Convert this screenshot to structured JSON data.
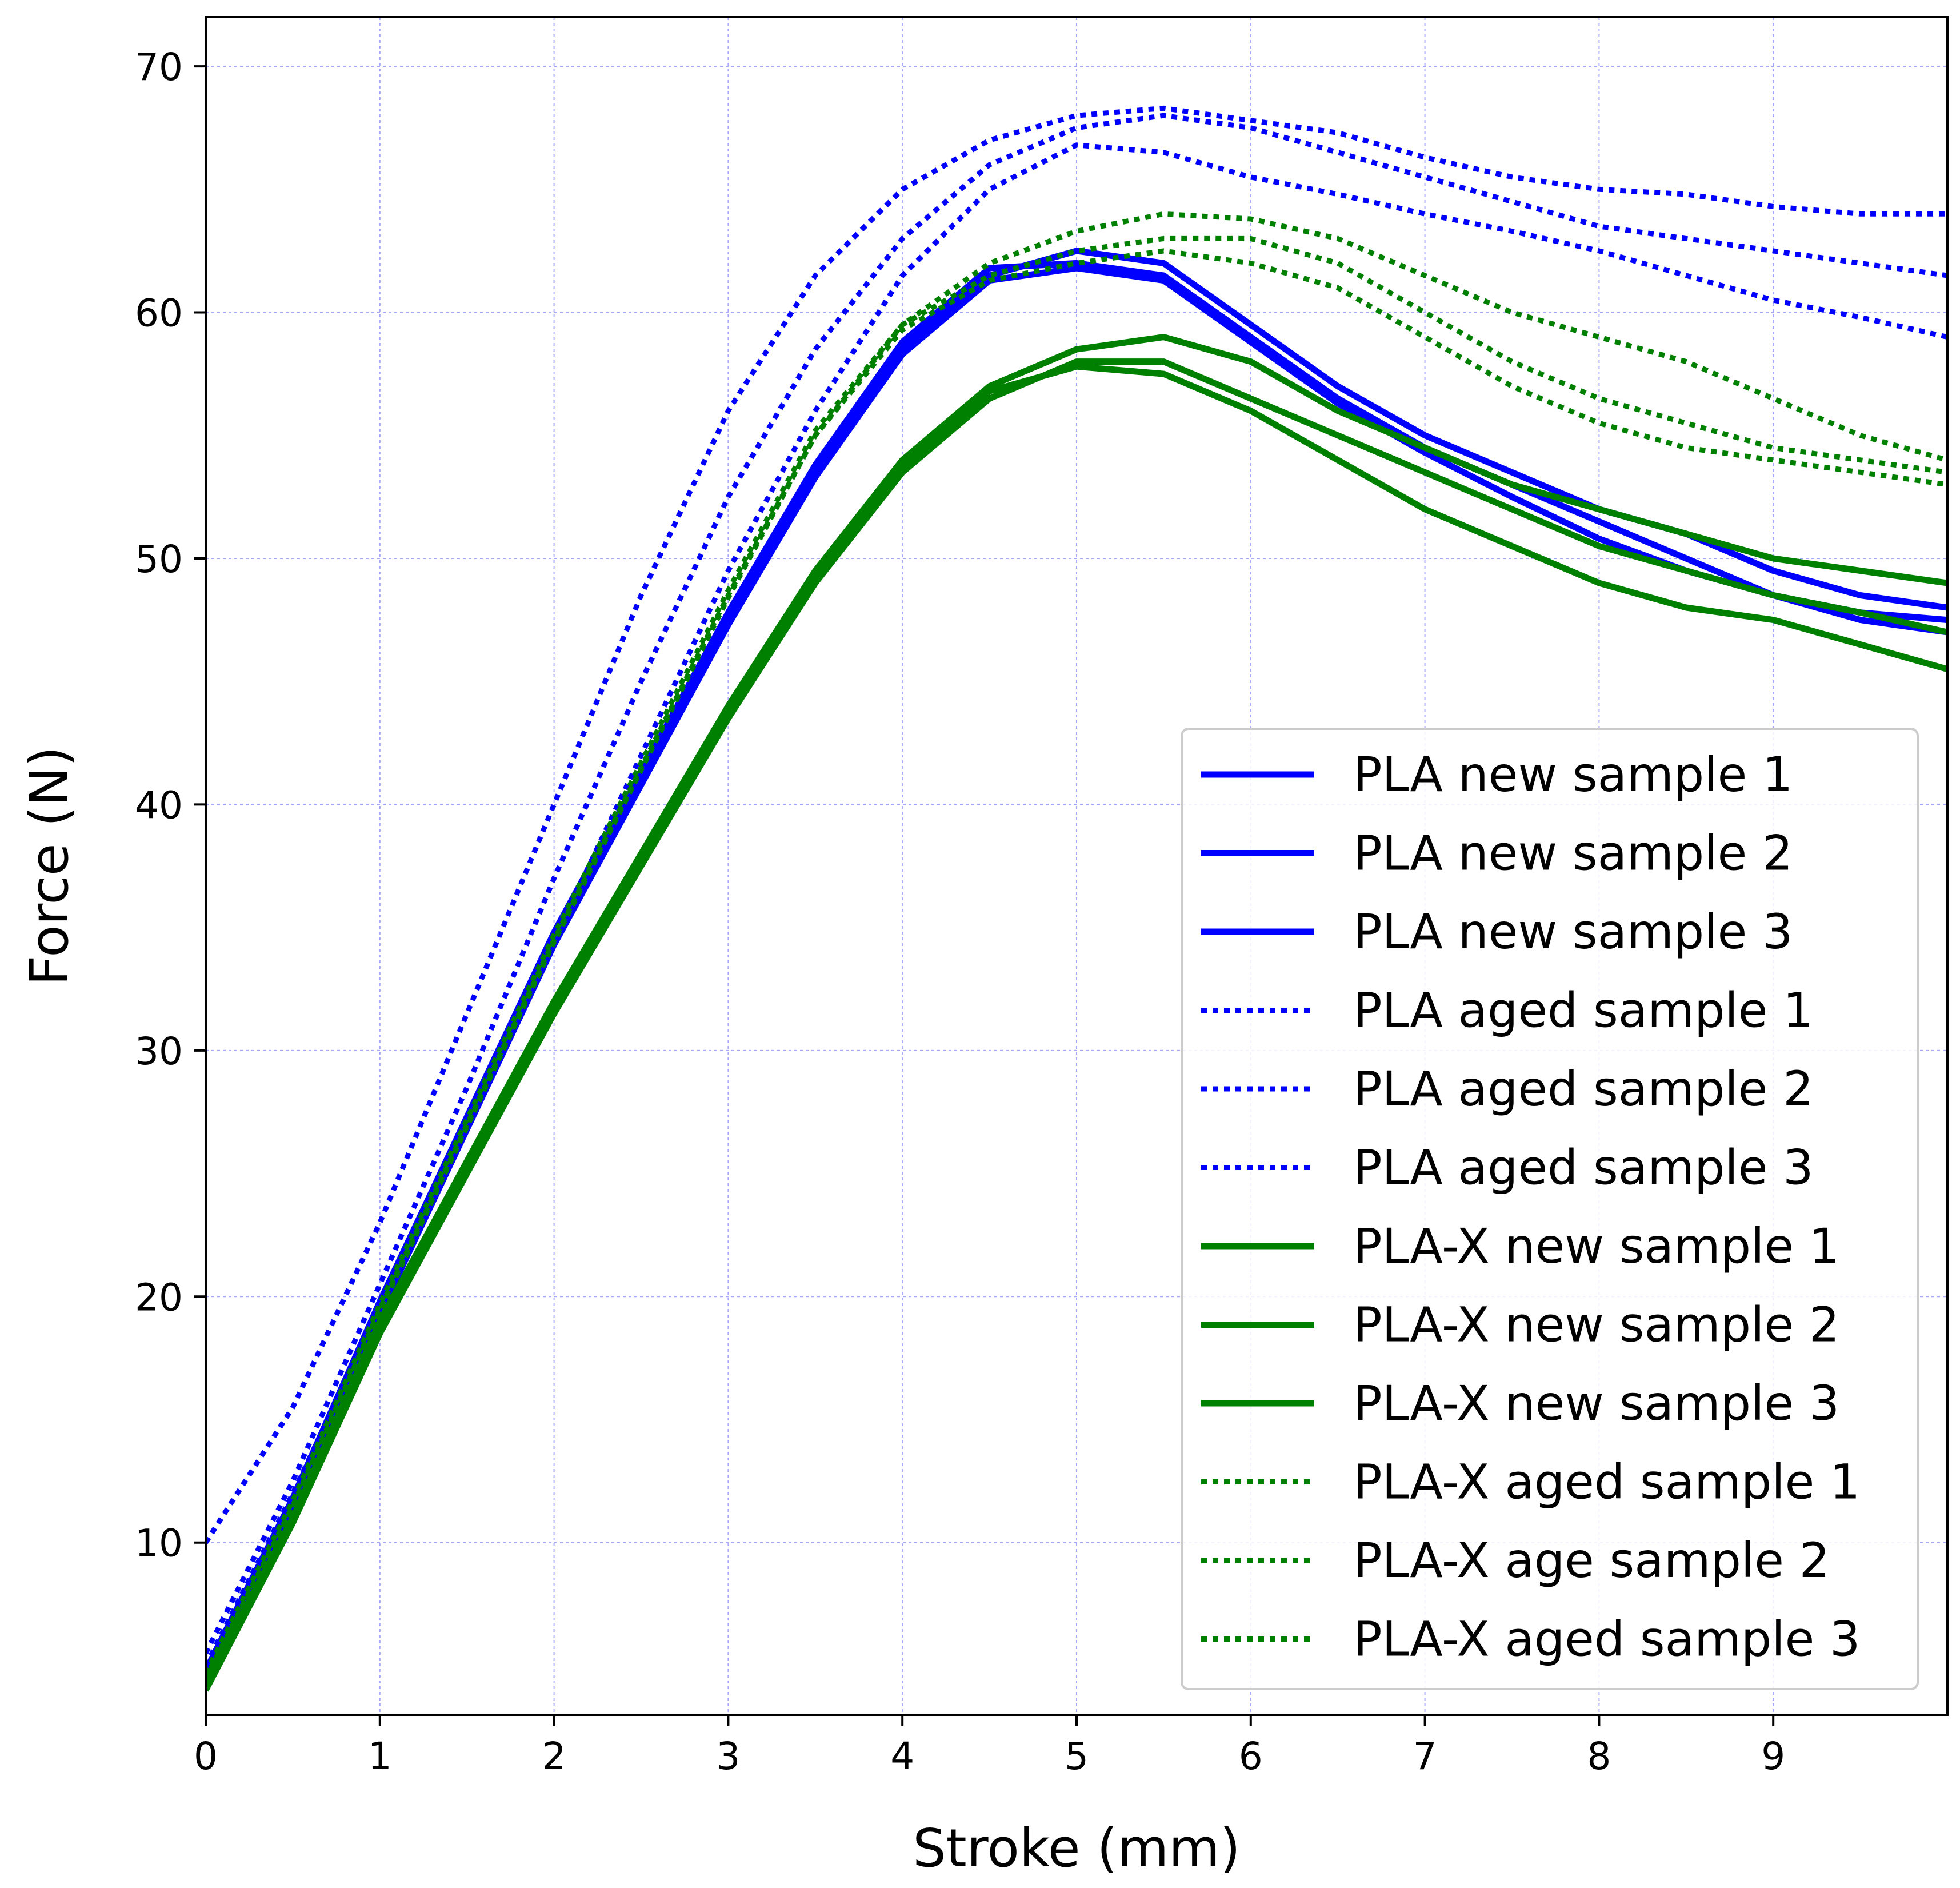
{
  "chart_data": {
    "type": "line",
    "title": "",
    "xlabel": "Stroke (mm)",
    "ylabel": "Force (N)",
    "xlim": [
      0,
      10
    ],
    "ylim": [
      3,
      72
    ],
    "xticks": [
      0,
      1,
      2,
      3,
      4,
      5,
      6,
      7,
      8,
      9
    ],
    "yticks": [
      10,
      20,
      30,
      40,
      50,
      60,
      70
    ],
    "grid": true,
    "grid_color": "#0000ff",
    "legend_position": "lower-right",
    "series": [
      {
        "name": "PLA new sample 1",
        "color": "#0000ff",
        "style": "solid",
        "x": [
          0,
          0.5,
          1,
          1.5,
          2,
          2.5,
          3,
          3.5,
          4,
          4.5,
          5,
          5.5,
          6,
          6.5,
          7,
          7.5,
          8,
          8.5,
          9,
          9.5,
          10
        ],
        "y": [
          4.5,
          11.5,
          19.5,
          27,
          34.5,
          41,
          47.5,
          53.5,
          58.5,
          61.5,
          62.5,
          62,
          59.5,
          57,
          55,
          53.5,
          52,
          51,
          49.5,
          48.5,
          48
        ]
      },
      {
        "name": "PLA new sample 2",
        "color": "#0000ff",
        "style": "solid",
        "x": [
          0,
          0.5,
          1,
          1.5,
          2,
          2.5,
          3,
          3.5,
          4,
          4.5,
          5,
          5.5,
          6,
          6.5,
          7,
          7.5,
          8,
          8.5,
          9,
          9.5,
          10
        ],
        "y": [
          4.8,
          11.8,
          19.8,
          27.3,
          34.8,
          41.3,
          47.8,
          53.8,
          58.8,
          61.8,
          62,
          61.5,
          59,
          56.5,
          54.5,
          53,
          51.5,
          50,
          48.5,
          47.5,
          47
        ]
      },
      {
        "name": "PLA new sample 3",
        "color": "#0000ff",
        "style": "solid",
        "x": [
          0,
          0.5,
          1,
          1.5,
          2,
          2.5,
          3,
          3.5,
          4,
          4.5,
          5,
          5.5,
          6,
          6.5,
          7,
          7.5,
          8,
          8.5,
          9,
          9.5,
          10
        ],
        "y": [
          4.3,
          11.3,
          19.3,
          26.8,
          34.3,
          40.8,
          47.3,
          53.3,
          58.3,
          61.3,
          61.8,
          61.3,
          58.8,
          56.3,
          54.3,
          52.5,
          50.8,
          49.5,
          48.5,
          47.8,
          47.5
        ]
      },
      {
        "name": "PLA aged sample 1",
        "color": "#0000ff",
        "style": "dotted",
        "x": [
          0,
          0.5,
          1,
          1.5,
          2,
          2.5,
          3,
          3.5,
          4,
          4.5,
          5,
          5.5,
          6,
          6.5,
          7,
          7.5,
          8,
          8.5,
          9,
          9.5,
          10
        ],
        "y": [
          10,
          15.5,
          23,
          31.5,
          40,
          48.5,
          56,
          61.5,
          65,
          67,
          68,
          68.3,
          67.8,
          67.3,
          66.3,
          65.5,
          65,
          64.8,
          64.3,
          64,
          64
        ]
      },
      {
        "name": "PLA aged sample 2",
        "color": "#0000ff",
        "style": "dotted",
        "x": [
          0,
          0.5,
          1,
          1.5,
          2,
          2.5,
          3,
          3.5,
          4,
          4.5,
          5,
          5.5,
          6,
          6.5,
          7,
          7.5,
          8,
          8.5,
          9,
          9.5,
          10
        ],
        "y": [
          5.5,
          12.5,
          20.5,
          28.5,
          37,
          45,
          52.5,
          58.5,
          63,
          66,
          67.5,
          68,
          67.5,
          66.5,
          65.5,
          64.5,
          63.5,
          63,
          62.5,
          62,
          61.5
        ]
      },
      {
        "name": "PLA aged sample 3",
        "color": "#0000ff",
        "style": "dotted",
        "x": [
          0,
          0.5,
          1,
          1.5,
          2,
          2.5,
          3,
          3.5,
          4,
          4.5,
          5,
          5.5,
          6,
          6.5,
          7,
          7.5,
          8,
          8.5,
          9,
          9.5,
          10
        ],
        "y": [
          5,
          12,
          19.5,
          27,
          34.5,
          42,
          49.5,
          56,
          61.5,
          65,
          66.8,
          66.5,
          65.5,
          64.8,
          64,
          63.3,
          62.5,
          61.5,
          60.5,
          59.8,
          59
        ]
      },
      {
        "name": "PLA-X new sample 1",
        "color": "#008000",
        "style": "solid",
        "x": [
          0,
          0.5,
          1,
          1.5,
          2,
          2.5,
          3,
          3.5,
          4,
          4.5,
          5,
          5.5,
          6,
          6.5,
          7,
          7.5,
          8,
          8.5,
          9,
          9.5,
          10
        ],
        "y": [
          4.2,
          11,
          19,
          25.5,
          32,
          38,
          44,
          49.5,
          54,
          57,
          58.5,
          59,
          58,
          56,
          54.5,
          53,
          52,
          51,
          50,
          49.5,
          49
        ]
      },
      {
        "name": "PLA-X new sample 2",
        "color": "#008000",
        "style": "solid",
        "x": [
          0,
          0.5,
          1,
          1.5,
          2,
          2.5,
          3,
          3.5,
          4,
          4.5,
          5,
          5.5,
          6,
          6.5,
          7,
          7.5,
          8,
          8.5,
          9,
          9.5,
          10
        ],
        "y": [
          4,
          10.8,
          18.5,
          25,
          31.5,
          37.5,
          43.5,
          49,
          53.5,
          56.5,
          58,
          58,
          56.5,
          55,
          53.5,
          52,
          50.5,
          49.5,
          48.5,
          47.8,
          47
        ]
      },
      {
        "name": "PLA-X new sample 3",
        "color": "#008000",
        "style": "solid",
        "x": [
          0,
          0.5,
          1,
          1.5,
          2,
          2.5,
          3,
          3.5,
          4,
          4.5,
          5,
          5.5,
          6,
          6.5,
          7,
          7.5,
          8,
          8.5,
          9,
          9.5,
          10
        ],
        "y": [
          4.3,
          11,
          18.8,
          25.3,
          31.8,
          37.8,
          43.8,
          49.3,
          53.8,
          56.8,
          57.8,
          57.5,
          56,
          54,
          52,
          50.5,
          49,
          48,
          47.5,
          46.5,
          45.5
        ]
      },
      {
        "name": "PLA-X aged sample 1",
        "color": "#008000",
        "style": "dotted",
        "x": [
          0,
          0.5,
          1,
          1.5,
          2,
          2.5,
          3,
          3.5,
          4,
          4.5,
          5,
          5.5,
          6,
          6.5,
          7,
          7.5,
          8,
          8.5,
          9,
          9.5,
          10
        ],
        "y": [
          4.5,
          11.5,
          19.5,
          27,
          34.5,
          41.5,
          48.5,
          55,
          59.5,
          62,
          63.3,
          64,
          63.8,
          63,
          61.5,
          60,
          59,
          58,
          56.5,
          55,
          54
        ]
      },
      {
        "name": "PLA-X age sample 2",
        "color": "#008000",
        "style": "dotted",
        "x": [
          0,
          0.5,
          1,
          1.5,
          2,
          2.5,
          3,
          3.5,
          4,
          4.5,
          5,
          5.5,
          6,
          6.5,
          7,
          7.5,
          8,
          8.5,
          9,
          9.5,
          10
        ],
        "y": [
          4.7,
          11.7,
          19.7,
          27.2,
          34.7,
          41.7,
          48.7,
          55.2,
          59.5,
          61.5,
          62.5,
          63,
          63,
          62,
          60,
          58,
          56.5,
          55.5,
          54.5,
          54,
          53.5
        ]
      },
      {
        "name": "PLA-X aged sample 3",
        "color": "#008000",
        "style": "dotted",
        "x": [
          0,
          0.5,
          1,
          1.5,
          2,
          2.5,
          3,
          3.5,
          4,
          4.5,
          5,
          5.5,
          6,
          6.5,
          7,
          7.5,
          8,
          8.5,
          9,
          9.5,
          10
        ],
        "y": [
          4.4,
          11.4,
          19.4,
          26.9,
          34.4,
          41.4,
          48.4,
          55,
          59.3,
          61.3,
          62,
          62.5,
          62,
          61,
          59,
          57,
          55.5,
          54.5,
          54,
          53.5,
          53
        ]
      }
    ]
  }
}
